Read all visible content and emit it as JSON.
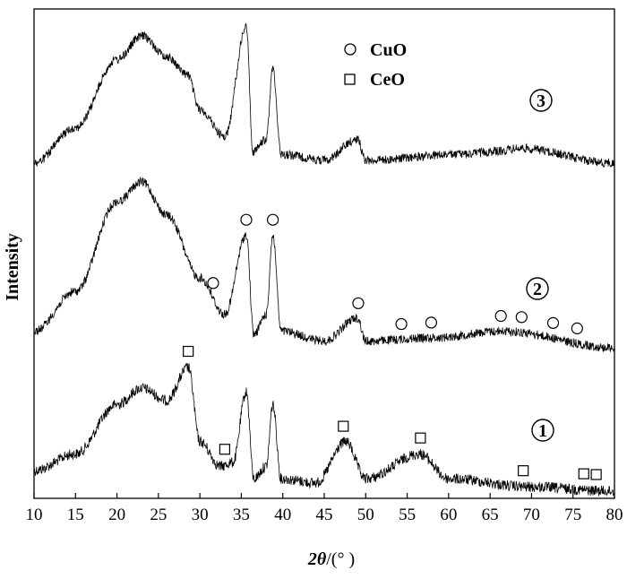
{
  "chart_data": {
    "type": "line",
    "title": "",
    "xlabel_symbol": "2θ",
    "xlabel_unit": "/(° )",
    "ylabel": "Intensity",
    "xlim": [
      10,
      80
    ],
    "xticks": [
      10,
      15,
      20,
      25,
      30,
      35,
      40,
      45,
      50,
      55,
      60,
      65,
      70,
      75,
      80
    ],
    "yticks_shown": false,
    "grid": false,
    "legend": {
      "position": "top-center",
      "entries": [
        {
          "marker": "circle",
          "label": "CuO"
        },
        {
          "marker": "square",
          "label": "CeO"
        }
      ]
    },
    "series": [
      {
        "name": "①",
        "baseline_relative": [
          [
            10,
            0.1
          ],
          [
            15,
            0.18
          ],
          [
            20,
            0.42
          ],
          [
            23,
            0.5
          ],
          [
            26,
            0.44
          ],
          [
            28.6,
            0.6
          ],
          [
            30,
            0.24
          ],
          [
            32.5,
            0.12
          ],
          [
            34,
            0.14
          ],
          [
            35.6,
            0.48
          ],
          [
            36.5,
            0.06
          ],
          [
            38,
            0.12
          ],
          [
            38.8,
            0.42
          ],
          [
            39.8,
            0.06
          ],
          [
            44,
            0.04
          ],
          [
            47.6,
            0.24
          ],
          [
            50,
            0.06
          ],
          [
            56.5,
            0.18
          ],
          [
            60,
            0.06
          ],
          [
            70,
            0.02
          ],
          [
            80,
            0.0
          ]
        ],
        "markers": {
          "type": "square",
          "x": [
            28.6,
            33.0,
            47.3,
            56.6,
            69.0,
            76.3,
            77.8
          ]
        }
      },
      {
        "name": "②",
        "baseline_relative": [
          [
            10,
            0.1
          ],
          [
            15,
            0.34
          ],
          [
            20,
            0.88
          ],
          [
            23,
            1.0
          ],
          [
            26,
            0.8
          ],
          [
            30,
            0.42
          ],
          [
            33,
            0.2
          ],
          [
            35.6,
            0.68
          ],
          [
            36.5,
            0.08
          ],
          [
            38,
            0.2
          ],
          [
            38.8,
            0.68
          ],
          [
            39.8,
            0.1
          ],
          [
            45,
            0.04
          ],
          [
            49.0,
            0.18
          ],
          [
            50,
            0.04
          ],
          [
            58,
            0.06
          ],
          [
            66.5,
            0.1
          ],
          [
            80,
            0.0
          ]
        ],
        "markers": {
          "type": "circle",
          "x": [
            31.6,
            35.6,
            38.8,
            49.1,
            54.3,
            57.9,
            66.3,
            68.8,
            72.6,
            75.5
          ]
        }
      },
      {
        "name": "③",
        "baseline_relative": [
          [
            10,
            0.0
          ],
          [
            15,
            0.24
          ],
          [
            20,
            0.7
          ],
          [
            23,
            0.86
          ],
          [
            26,
            0.72
          ],
          [
            28.5,
            0.6
          ],
          [
            30,
            0.36
          ],
          [
            33,
            0.18
          ],
          [
            35.6,
            0.92
          ],
          [
            36.4,
            0.08
          ],
          [
            38,
            0.16
          ],
          [
            38.8,
            0.64
          ],
          [
            39.8,
            0.06
          ],
          [
            45,
            0.02
          ],
          [
            49.0,
            0.16
          ],
          [
            50,
            0.02
          ],
          [
            61.5,
            0.06
          ],
          [
            66,
            0.08
          ],
          [
            68.5,
            0.1
          ],
          [
            80,
            0.0
          ]
        ],
        "markers": {
          "type": "none",
          "x": []
        }
      }
    ]
  }
}
